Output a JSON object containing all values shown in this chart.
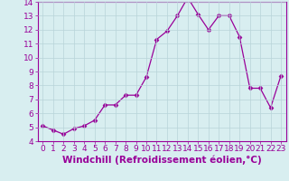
{
  "x": [
    0,
    1,
    2,
    3,
    4,
    5,
    6,
    7,
    8,
    9,
    10,
    11,
    12,
    13,
    14,
    15,
    16,
    17,
    18,
    19,
    20,
    21,
    22,
    23
  ],
  "y": [
    5.1,
    4.8,
    4.5,
    4.9,
    5.1,
    5.5,
    6.6,
    6.6,
    7.3,
    7.3,
    8.6,
    11.3,
    11.9,
    13.0,
    14.3,
    13.1,
    12.0,
    13.0,
    13.0,
    11.5,
    7.8,
    7.8,
    6.4,
    8.7
  ],
  "line_color": "#990099",
  "marker": "D",
  "marker_size": 2.5,
  "bg_color": "#d8eef0",
  "grid_color": "#b8d4d8",
  "xlabel": "Windchill (Refroidissement éolien,°C)",
  "ylim": [
    4,
    14
  ],
  "xlim_min": -0.5,
  "xlim_max": 23.5,
  "yticks": [
    4,
    5,
    6,
    7,
    8,
    9,
    10,
    11,
    12,
    13,
    14
  ],
  "xticks": [
    0,
    1,
    2,
    3,
    4,
    5,
    6,
    7,
    8,
    9,
    10,
    11,
    12,
    13,
    14,
    15,
    16,
    17,
    18,
    19,
    20,
    21,
    22,
    23
  ],
  "tick_label_fontsize": 6.5,
  "xlabel_fontsize": 7.5
}
